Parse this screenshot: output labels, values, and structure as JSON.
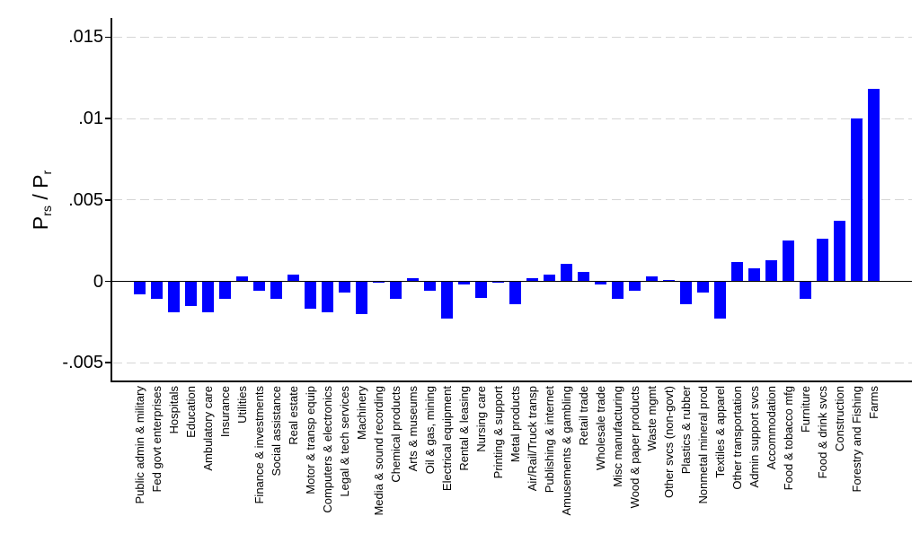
{
  "chart_data": {
    "type": "bar",
    "title": "",
    "ylabel_plain": "Prs / Pr",
    "ylabel_parts": {
      "base1": "P",
      "sub1": "rs",
      "sep": " / ",
      "base2": "P",
      "sub2": "r"
    },
    "xlabel": "",
    "bar_color": "#0000ff",
    "grid_color": "#d6d6d6",
    "grid": "dashed-horizontal",
    "legend": "none",
    "x_label_rotation": 90,
    "ylim": [
      -0.0061,
      0.0161
    ],
    "y_ticks": [
      {
        "label": ".015",
        "value": 0.015
      },
      {
        "label": ".01",
        "value": 0.01
      },
      {
        "label": ".005",
        "value": 0.005
      },
      {
        "label": "0",
        "value": 0
      },
      {
        "label": "-.005",
        "value": -0.005
      }
    ],
    "categories": [
      "Public admin & military",
      "Fed govt enterprises",
      "Hospitals",
      "Education",
      "Ambulatory care",
      "Insurance",
      "Utilities",
      "Finance & investments",
      "Social assistance",
      "Real estate",
      "Motor & transp equip",
      "Computers & electronics",
      "Legal & tech services",
      "Machinery",
      "Media & sound recording",
      "Chemical products",
      "Arts & museums",
      "Oil & gas, mining",
      "Electrical equipment",
      "Rental & leasing",
      "Nursing care",
      "Printing & support",
      "Metal products",
      "Air/Rail/Truck transp",
      "Publishing & internet",
      "Amusements & gambling",
      "Retail trade",
      "Wholesale trade",
      "Misc manufacturing",
      "Wood & paper products",
      "Waste mgmt",
      "Other svcs (non-govt)",
      "Plastics & rubber",
      "Nonmetal mineral prod",
      "Textiles & apparel",
      "Other transportation",
      "Admin support svcs",
      "Accommodation",
      "Food & tobacco mfg",
      "Furniture",
      "Food & drink svcs",
      "Construction",
      "Forestry and Fishing",
      "Farms"
    ],
    "values": [
      -0.0008,
      -0.0011,
      -0.0019,
      -0.0015,
      -0.0019,
      -0.0011,
      0.0003,
      -0.0006,
      -0.0011,
      0.0004,
      -0.0017,
      -0.0019,
      -0.0007,
      -0.002,
      -0.0001,
      -0.0011,
      0.0002,
      -0.0006,
      -0.0023,
      -0.0002,
      -0.001,
      -0.0001,
      -0.0014,
      0.0002,
      0.0004,
      0.0011,
      0.0006,
      -0.0002,
      -0.0011,
      -0.0006,
      0.0003,
      0.0001,
      -0.0014,
      -0.0007,
      -0.0023,
      0.0012,
      0.0008,
      0.0013,
      0.0025,
      -0.0011,
      0.0026,
      0.0037,
      0.01,
      0.0118
    ]
  }
}
